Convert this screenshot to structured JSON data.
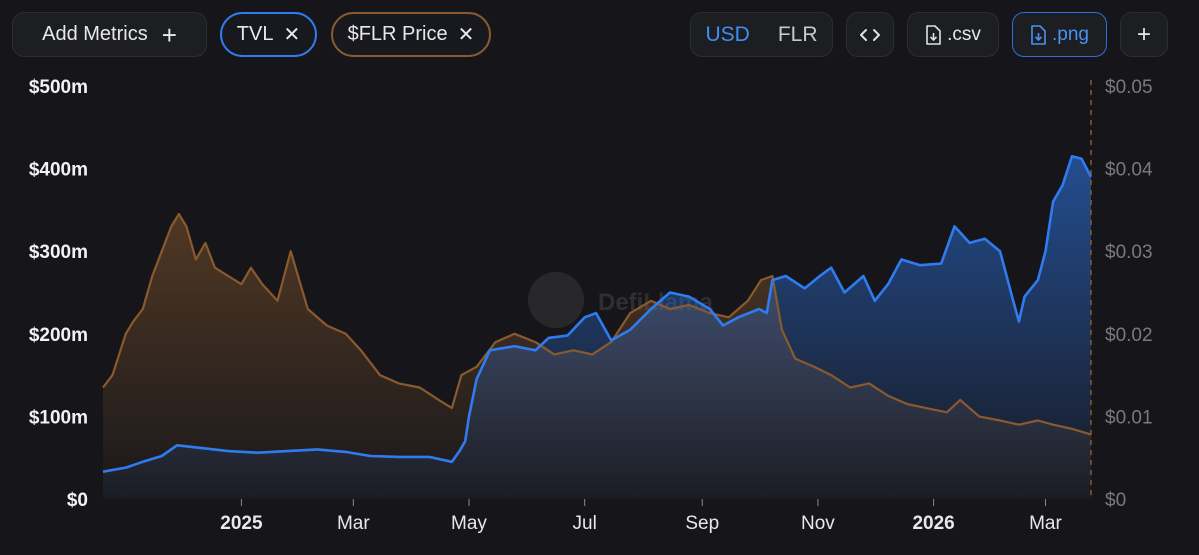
{
  "toolbar": {
    "add_metrics_label": "Add Metrics",
    "chips": [
      {
        "label": "TVL",
        "color": "#2f7bf0"
      },
      {
        "label": "$FLR Price",
        "color": "#8a5a2e"
      }
    ],
    "currency": {
      "options": [
        "USD",
        "FLR"
      ],
      "selected": "USD"
    },
    "embed_icon": "code-icon",
    "csv_label": ".csv",
    "png_label": ".png",
    "add_icon": "plus-icon"
  },
  "watermark": "DefiLlama",
  "chart_data": {
    "type": "area",
    "title": "",
    "x_tick_labels": [
      "2025",
      "Mar",
      "May",
      "Jul",
      "Sep",
      "Nov",
      "2026",
      "Mar"
    ],
    "x_tick_dates": [
      "2025-01-01",
      "2025-03-01",
      "2025-05-01",
      "2025-07-01",
      "2025-09-01",
      "2025-11-01",
      "2026-01-01",
      "2026-03-01"
    ],
    "x_range": [
      "2024-10-20",
      "2026-03-25"
    ],
    "left_axis": {
      "series": "TVL",
      "ylim": [
        0,
        500
      ],
      "unit": "m",
      "ticks": [
        "$0",
        "$100m",
        "$200m",
        "$300m",
        "$400m",
        "$500m"
      ]
    },
    "right_axis": {
      "series": "$FLR Price",
      "ylim": [
        0,
        0.05
      ],
      "ticks": [
        "$0",
        "$0.01",
        "$0.02",
        "$0.03",
        "$0.04",
        "$0.05"
      ]
    },
    "series": [
      {
        "name": "TVL",
        "axis": "left",
        "color": "#2f7bf0",
        "points": [
          [
            "2024-10-20",
            33
          ],
          [
            "2024-11-01",
            38
          ],
          [
            "2024-11-10",
            45
          ],
          [
            "2024-11-20",
            52
          ],
          [
            "2024-11-28",
            65
          ],
          [
            "2024-12-10",
            62
          ],
          [
            "2024-12-25",
            58
          ],
          [
            "2025-01-10",
            56
          ],
          [
            "2025-01-25",
            58
          ],
          [
            "2025-02-10",
            60
          ],
          [
            "2025-02-25",
            57
          ],
          [
            "2025-03-10",
            52
          ],
          [
            "2025-03-25",
            51
          ],
          [
            "2025-04-10",
            51
          ],
          [
            "2025-04-22",
            45
          ],
          [
            "2025-04-26",
            58
          ],
          [
            "2025-04-29",
            70
          ],
          [
            "2025-05-01",
            100
          ],
          [
            "2025-05-05",
            145
          ],
          [
            "2025-05-12",
            180
          ],
          [
            "2025-05-25",
            185
          ],
          [
            "2025-06-05",
            180
          ],
          [
            "2025-06-12",
            195
          ],
          [
            "2025-06-22",
            198
          ],
          [
            "2025-07-01",
            220
          ],
          [
            "2025-07-07",
            225
          ],
          [
            "2025-07-15",
            192
          ],
          [
            "2025-07-25",
            205
          ],
          [
            "2025-08-05",
            230
          ],
          [
            "2025-08-15",
            250
          ],
          [
            "2025-08-25",
            245
          ],
          [
            "2025-09-05",
            230
          ],
          [
            "2025-09-12",
            210
          ],
          [
            "2025-09-20",
            220
          ],
          [
            "2025-10-01",
            230
          ],
          [
            "2025-10-05",
            225
          ],
          [
            "2025-10-08",
            265
          ],
          [
            "2025-10-15",
            270
          ],
          [
            "2025-10-25",
            255
          ],
          [
            "2025-11-02",
            270
          ],
          [
            "2025-11-08",
            280
          ],
          [
            "2025-11-15",
            250
          ],
          [
            "2025-11-25",
            270
          ],
          [
            "2025-12-01",
            240
          ],
          [
            "2025-12-08",
            260
          ],
          [
            "2025-12-15",
            290
          ],
          [
            "2025-12-25",
            283
          ],
          [
            "2026-01-05",
            285
          ],
          [
            "2026-01-12",
            330
          ],
          [
            "2026-01-20",
            310
          ],
          [
            "2026-01-28",
            315
          ],
          [
            "2026-02-05",
            300
          ],
          [
            "2026-02-12",
            240
          ],
          [
            "2026-02-15",
            215
          ],
          [
            "2026-02-18",
            245
          ],
          [
            "2026-02-25",
            265
          ],
          [
            "2026-03-01",
            300
          ],
          [
            "2026-03-05",
            360
          ],
          [
            "2026-03-10",
            380
          ],
          [
            "2026-03-15",
            415
          ],
          [
            "2026-03-20",
            412
          ],
          [
            "2026-03-25",
            390
          ]
        ]
      },
      {
        "name": "$FLR Price",
        "axis": "right",
        "color": "#8a5a2e",
        "points": [
          [
            "2024-10-20",
            0.0135
          ],
          [
            "2024-10-25",
            0.015
          ],
          [
            "2024-11-01",
            0.02
          ],
          [
            "2024-11-05",
            0.0215
          ],
          [
            "2024-11-10",
            0.023
          ],
          [
            "2024-11-15",
            0.027
          ],
          [
            "2024-11-20",
            0.03
          ],
          [
            "2024-11-25",
            0.033
          ],
          [
            "2024-11-29",
            0.0345
          ],
          [
            "2024-12-03",
            0.033
          ],
          [
            "2024-12-08",
            0.029
          ],
          [
            "2024-12-13",
            0.031
          ],
          [
            "2024-12-18",
            0.028
          ],
          [
            "2024-12-25",
            0.027
          ],
          [
            "2025-01-01",
            0.026
          ],
          [
            "2025-01-06",
            0.028
          ],
          [
            "2025-01-12",
            0.026
          ],
          [
            "2025-01-20",
            0.024
          ],
          [
            "2025-01-27",
            0.03
          ],
          [
            "2025-02-05",
            0.023
          ],
          [
            "2025-02-15",
            0.021
          ],
          [
            "2025-02-25",
            0.02
          ],
          [
            "2025-03-05",
            0.018
          ],
          [
            "2025-03-15",
            0.015
          ],
          [
            "2025-03-25",
            0.014
          ],
          [
            "2025-04-05",
            0.0135
          ],
          [
            "2025-04-15",
            0.012
          ],
          [
            "2025-04-22",
            0.011
          ],
          [
            "2025-04-27",
            0.015
          ],
          [
            "2025-05-05",
            0.016
          ],
          [
            "2025-05-15",
            0.019
          ],
          [
            "2025-05-25",
            0.02
          ],
          [
            "2025-06-05",
            0.019
          ],
          [
            "2025-06-15",
            0.0175
          ],
          [
            "2025-06-25",
            0.018
          ],
          [
            "2025-07-05",
            0.0175
          ],
          [
            "2025-07-15",
            0.019
          ],
          [
            "2025-07-25",
            0.0225
          ],
          [
            "2025-08-05",
            0.024
          ],
          [
            "2025-08-15",
            0.023
          ],
          [
            "2025-08-25",
            0.0235
          ],
          [
            "2025-09-05",
            0.0225
          ],
          [
            "2025-09-15",
            0.022
          ],
          [
            "2025-09-25",
            0.024
          ],
          [
            "2025-10-02",
            0.0265
          ],
          [
            "2025-10-08",
            0.027
          ],
          [
            "2025-10-13",
            0.0205
          ],
          [
            "2025-10-20",
            0.017
          ],
          [
            "2025-10-30",
            0.016
          ],
          [
            "2025-11-08",
            0.015
          ],
          [
            "2025-11-18",
            0.0135
          ],
          [
            "2025-11-28",
            0.014
          ],
          [
            "2025-12-08",
            0.0125
          ],
          [
            "2025-12-18",
            0.0115
          ],
          [
            "2025-12-28",
            0.011
          ],
          [
            "2026-01-08",
            0.0105
          ],
          [
            "2026-01-15",
            0.012
          ],
          [
            "2026-01-25",
            0.01
          ],
          [
            "2026-02-05",
            0.0095
          ],
          [
            "2026-02-15",
            0.009
          ],
          [
            "2026-02-25",
            0.0095
          ],
          [
            "2026-03-05",
            0.009
          ],
          [
            "2026-03-15",
            0.0085
          ],
          [
            "2026-03-25",
            0.0078
          ]
        ]
      }
    ],
    "grid": false,
    "legend": "none"
  }
}
